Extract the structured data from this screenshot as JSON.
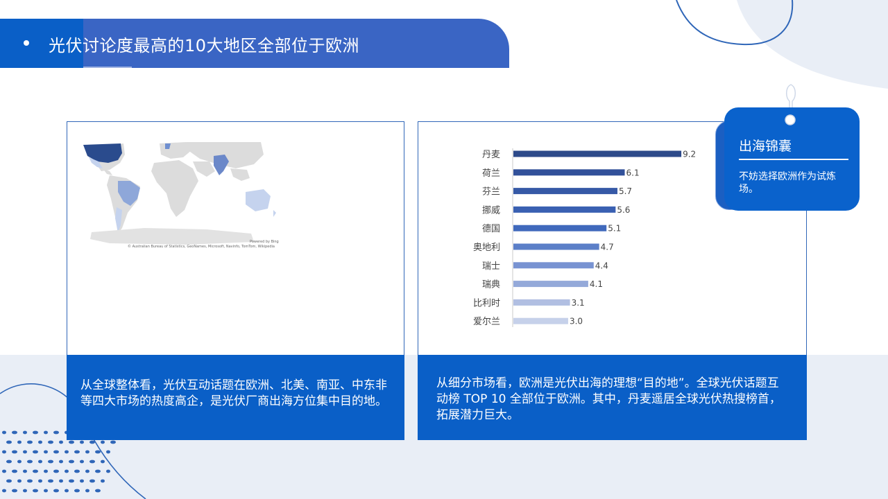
{
  "header": {
    "bullet": "•",
    "title": "光伏讨论度最高的10大地区全部位于欧洲"
  },
  "map": {
    "attribution": "© Australian Bureau of Statistics, GeoNames, Microsoft, Navinfo, TomTom, Wikipedia",
    "powered_by": "Powered by Bing"
  },
  "captions": {
    "left": "从全球整体看，光伏互动话题在欧洲、北美、南亚、中东非等四大市场的热度高企，是光伏厂商出海方位集中目的地。",
    "right": "从细分市场看，欧洲是光伏出海的理想“目的地”。全球光伏话题互动榜 TOP 10 全部位于欧洲。其中，丹麦遥居全球光伏热搜榜首，拓展潜力巨大。"
  },
  "tip": {
    "title": "出海锦囊",
    "text": "不妨选择欧洲作为试炼场。"
  },
  "chart_data": {
    "type": "bar",
    "orientation": "horizontal",
    "categories": [
      "丹麦",
      "荷兰",
      "芬兰",
      "挪威",
      "德国",
      "奥地利",
      "瑞士",
      "瑞典",
      "比利时",
      "爱尔兰"
    ],
    "values": [
      9.2,
      6.1,
      5.7,
      5.6,
      5.1,
      4.7,
      4.4,
      4.1,
      3.1,
      3.0
    ],
    "data_labels": [
      "9.2",
      "6.1",
      "5.7",
      "5.6",
      "5.1",
      "4.7",
      "4.4",
      "4.1",
      "3.1",
      "3.0"
    ],
    "xlim": [
      0,
      10
    ],
    "grid": false,
    "legend": "none",
    "colors": [
      "#2d4a8a",
      "#32519a",
      "#3659a6",
      "#3a60b2",
      "#4069bc",
      "#5b7fc8",
      "#7893d2",
      "#94a9d9",
      "#b1bfe2",
      "#c6d1ea"
    ]
  }
}
